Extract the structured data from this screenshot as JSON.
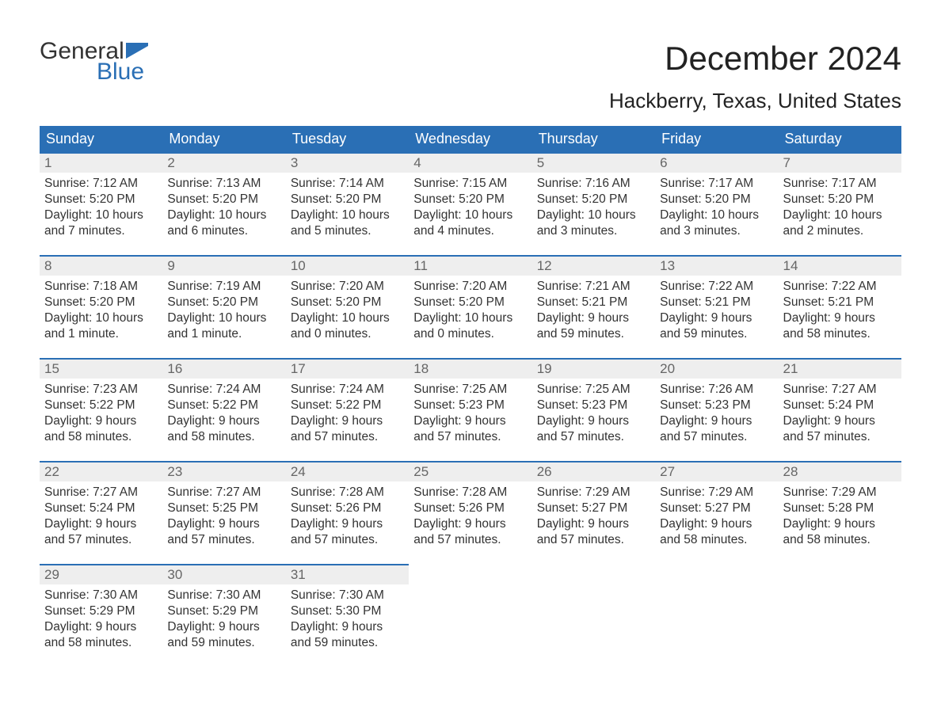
{
  "logo": {
    "text_top": "General",
    "text_bottom": "Blue",
    "flag_color": "#2a6fb5",
    "text_top_color": "#333333"
  },
  "title": "December 2024",
  "subtitle": "Hackberry, Texas, United States",
  "colors": {
    "header_bg": "#2a6fb5",
    "header_text": "#ffffff",
    "daynum_bg": "#eeeeee",
    "daynum_text": "#666666",
    "body_text": "#333333",
    "page_bg": "#ffffff",
    "row_border": "#2a6fb5"
  },
  "typography": {
    "title_fontsize": 42,
    "subtitle_fontsize": 26,
    "header_fontsize": 18,
    "daynum_fontsize": 17,
    "body_fontsize": 15.5
  },
  "weekdays": [
    "Sunday",
    "Monday",
    "Tuesday",
    "Wednesday",
    "Thursday",
    "Friday",
    "Saturday"
  ],
  "weeks": [
    [
      {
        "num": "1",
        "sunrise": "Sunrise: 7:12 AM",
        "sunset": "Sunset: 5:20 PM",
        "daylight1": "Daylight: 10 hours",
        "daylight2": "and 7 minutes."
      },
      {
        "num": "2",
        "sunrise": "Sunrise: 7:13 AM",
        "sunset": "Sunset: 5:20 PM",
        "daylight1": "Daylight: 10 hours",
        "daylight2": "and 6 minutes."
      },
      {
        "num": "3",
        "sunrise": "Sunrise: 7:14 AM",
        "sunset": "Sunset: 5:20 PM",
        "daylight1": "Daylight: 10 hours",
        "daylight2": "and 5 minutes."
      },
      {
        "num": "4",
        "sunrise": "Sunrise: 7:15 AM",
        "sunset": "Sunset: 5:20 PM",
        "daylight1": "Daylight: 10 hours",
        "daylight2": "and 4 minutes."
      },
      {
        "num": "5",
        "sunrise": "Sunrise: 7:16 AM",
        "sunset": "Sunset: 5:20 PM",
        "daylight1": "Daylight: 10 hours",
        "daylight2": "and 3 minutes."
      },
      {
        "num": "6",
        "sunrise": "Sunrise: 7:17 AM",
        "sunset": "Sunset: 5:20 PM",
        "daylight1": "Daylight: 10 hours",
        "daylight2": "and 3 minutes."
      },
      {
        "num": "7",
        "sunrise": "Sunrise: 7:17 AM",
        "sunset": "Sunset: 5:20 PM",
        "daylight1": "Daylight: 10 hours",
        "daylight2": "and 2 minutes."
      }
    ],
    [
      {
        "num": "8",
        "sunrise": "Sunrise: 7:18 AM",
        "sunset": "Sunset: 5:20 PM",
        "daylight1": "Daylight: 10 hours",
        "daylight2": "and 1 minute."
      },
      {
        "num": "9",
        "sunrise": "Sunrise: 7:19 AM",
        "sunset": "Sunset: 5:20 PM",
        "daylight1": "Daylight: 10 hours",
        "daylight2": "and 1 minute."
      },
      {
        "num": "10",
        "sunrise": "Sunrise: 7:20 AM",
        "sunset": "Sunset: 5:20 PM",
        "daylight1": "Daylight: 10 hours",
        "daylight2": "and 0 minutes."
      },
      {
        "num": "11",
        "sunrise": "Sunrise: 7:20 AM",
        "sunset": "Sunset: 5:20 PM",
        "daylight1": "Daylight: 10 hours",
        "daylight2": "and 0 minutes."
      },
      {
        "num": "12",
        "sunrise": "Sunrise: 7:21 AM",
        "sunset": "Sunset: 5:21 PM",
        "daylight1": "Daylight: 9 hours",
        "daylight2": "and 59 minutes."
      },
      {
        "num": "13",
        "sunrise": "Sunrise: 7:22 AM",
        "sunset": "Sunset: 5:21 PM",
        "daylight1": "Daylight: 9 hours",
        "daylight2": "and 59 minutes."
      },
      {
        "num": "14",
        "sunrise": "Sunrise: 7:22 AM",
        "sunset": "Sunset: 5:21 PM",
        "daylight1": "Daylight: 9 hours",
        "daylight2": "and 58 minutes."
      }
    ],
    [
      {
        "num": "15",
        "sunrise": "Sunrise: 7:23 AM",
        "sunset": "Sunset: 5:22 PM",
        "daylight1": "Daylight: 9 hours",
        "daylight2": "and 58 minutes."
      },
      {
        "num": "16",
        "sunrise": "Sunrise: 7:24 AM",
        "sunset": "Sunset: 5:22 PM",
        "daylight1": "Daylight: 9 hours",
        "daylight2": "and 58 minutes."
      },
      {
        "num": "17",
        "sunrise": "Sunrise: 7:24 AM",
        "sunset": "Sunset: 5:22 PM",
        "daylight1": "Daylight: 9 hours",
        "daylight2": "and 57 minutes."
      },
      {
        "num": "18",
        "sunrise": "Sunrise: 7:25 AM",
        "sunset": "Sunset: 5:23 PM",
        "daylight1": "Daylight: 9 hours",
        "daylight2": "and 57 minutes."
      },
      {
        "num": "19",
        "sunrise": "Sunrise: 7:25 AM",
        "sunset": "Sunset: 5:23 PM",
        "daylight1": "Daylight: 9 hours",
        "daylight2": "and 57 minutes."
      },
      {
        "num": "20",
        "sunrise": "Sunrise: 7:26 AM",
        "sunset": "Sunset: 5:23 PM",
        "daylight1": "Daylight: 9 hours",
        "daylight2": "and 57 minutes."
      },
      {
        "num": "21",
        "sunrise": "Sunrise: 7:27 AM",
        "sunset": "Sunset: 5:24 PM",
        "daylight1": "Daylight: 9 hours",
        "daylight2": "and 57 minutes."
      }
    ],
    [
      {
        "num": "22",
        "sunrise": "Sunrise: 7:27 AM",
        "sunset": "Sunset: 5:24 PM",
        "daylight1": "Daylight: 9 hours",
        "daylight2": "and 57 minutes."
      },
      {
        "num": "23",
        "sunrise": "Sunrise: 7:27 AM",
        "sunset": "Sunset: 5:25 PM",
        "daylight1": "Daylight: 9 hours",
        "daylight2": "and 57 minutes."
      },
      {
        "num": "24",
        "sunrise": "Sunrise: 7:28 AM",
        "sunset": "Sunset: 5:26 PM",
        "daylight1": "Daylight: 9 hours",
        "daylight2": "and 57 minutes."
      },
      {
        "num": "25",
        "sunrise": "Sunrise: 7:28 AM",
        "sunset": "Sunset: 5:26 PM",
        "daylight1": "Daylight: 9 hours",
        "daylight2": "and 57 minutes."
      },
      {
        "num": "26",
        "sunrise": "Sunrise: 7:29 AM",
        "sunset": "Sunset: 5:27 PM",
        "daylight1": "Daylight: 9 hours",
        "daylight2": "and 57 minutes."
      },
      {
        "num": "27",
        "sunrise": "Sunrise: 7:29 AM",
        "sunset": "Sunset: 5:27 PM",
        "daylight1": "Daylight: 9 hours",
        "daylight2": "and 58 minutes."
      },
      {
        "num": "28",
        "sunrise": "Sunrise: 7:29 AM",
        "sunset": "Sunset: 5:28 PM",
        "daylight1": "Daylight: 9 hours",
        "daylight2": "and 58 minutes."
      }
    ],
    [
      {
        "num": "29",
        "sunrise": "Sunrise: 7:30 AM",
        "sunset": "Sunset: 5:29 PM",
        "daylight1": "Daylight: 9 hours",
        "daylight2": "and 58 minutes."
      },
      {
        "num": "30",
        "sunrise": "Sunrise: 7:30 AM",
        "sunset": "Sunset: 5:29 PM",
        "daylight1": "Daylight: 9 hours",
        "daylight2": "and 59 minutes."
      },
      {
        "num": "31",
        "sunrise": "Sunrise: 7:30 AM",
        "sunset": "Sunset: 5:30 PM",
        "daylight1": "Daylight: 9 hours",
        "daylight2": "and 59 minutes."
      },
      null,
      null,
      null,
      null
    ]
  ]
}
